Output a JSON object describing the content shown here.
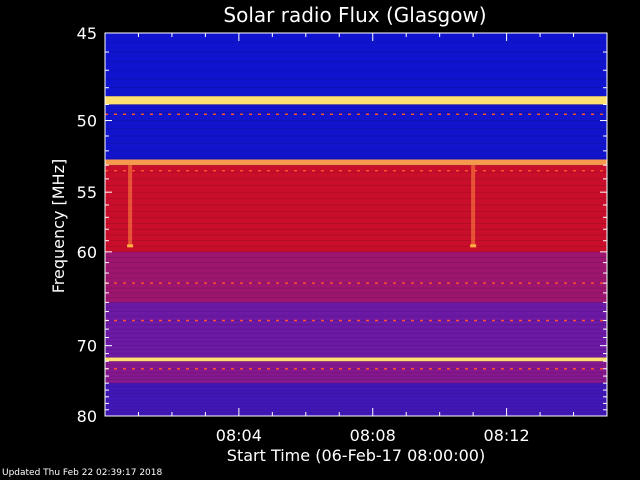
{
  "chart_data": {
    "type": "heatmap",
    "title": "Solar radio Flux (Glasgow)",
    "xlabel": "Start Time (06-Feb-17 08:00:00)",
    "ylabel": "Frequency [MHz]",
    "x_ticks": [
      "08:04",
      "08:08",
      "08:12"
    ],
    "x_tick_minutes": [
      4,
      8,
      12
    ],
    "xlim_minutes": [
      0,
      15
    ],
    "y_ticks": [
      45,
      50,
      55,
      60,
      70,
      80
    ],
    "ylim_mhz": [
      45,
      80
    ],
    "y_scale": "reciprocal",
    "colormap": {
      "low": "#0a14d0",
      "mid": "#7a1aa0",
      "high": "#e00a0a",
      "peak": "#ffe070"
    },
    "intensity_bands": [
      {
        "from_mhz": 45.0,
        "to_mhz": 48.5,
        "level": 0.02
      },
      {
        "from_mhz": 48.5,
        "to_mhz": 49.0,
        "level": 1.0
      },
      {
        "from_mhz": 49.0,
        "to_mhz": 52.6,
        "level": 0.03
      },
      {
        "from_mhz": 52.6,
        "to_mhz": 53.0,
        "level": 0.95
      },
      {
        "from_mhz": 53.0,
        "to_mhz": 60.0,
        "level": 0.75
      },
      {
        "from_mhz": 60.0,
        "to_mhz": 65.0,
        "level": 0.55
      },
      {
        "from_mhz": 65.0,
        "to_mhz": 71.5,
        "level": 0.35
      },
      {
        "from_mhz": 71.5,
        "to_mhz": 72.0,
        "level": 1.0
      },
      {
        "from_mhz": 72.0,
        "to_mhz": 75.0,
        "level": 0.45
      },
      {
        "from_mhz": 75.0,
        "to_mhz": 80.0,
        "level": 0.2
      }
    ],
    "hot_lines_mhz": [
      49.6,
      53.4,
      63.0,
      67.0,
      73.0
    ],
    "bursts": [
      {
        "minute": 0.75,
        "from_mhz": 53.0,
        "to_mhz": 59.5
      },
      {
        "minute": 11.0,
        "from_mhz": 53.0,
        "to_mhz": 59.5
      }
    ]
  },
  "footer": {
    "updated": "Updated Thu Feb 22 02:39:17 2018"
  }
}
